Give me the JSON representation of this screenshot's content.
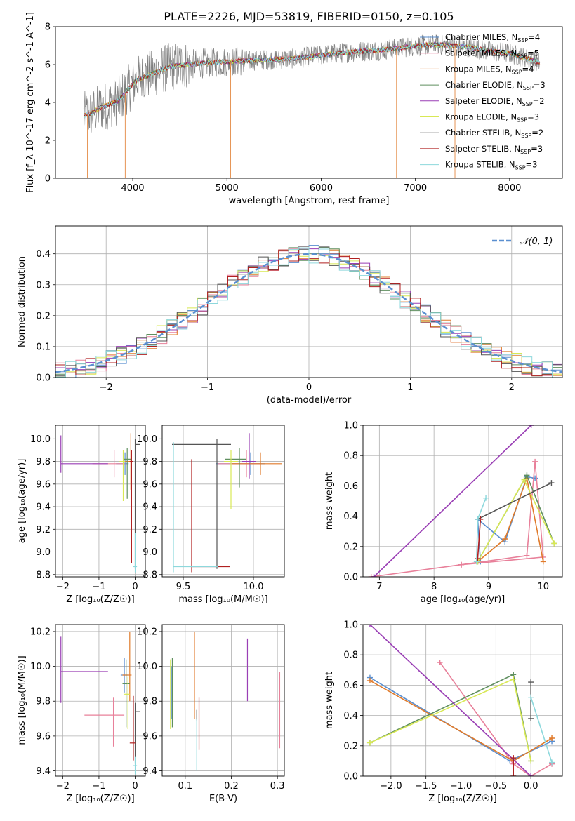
{
  "figure": {
    "title": "PLATE=2226, MJD=53819, FIBERID=0150, z=0.105"
  },
  "colors": {
    "Chabrier MILES": "#5a8fd0",
    "Salpeter MILES": "#e8809a",
    "Kroupa MILES": "#e07a2a",
    "Chabrier ELODIE": "#5f8f5f",
    "Salpeter ELODIE": "#9a3fb5",
    "Kroupa ELODIE": "#d8e855",
    "Chabrier STELIB": "#555555",
    "Salpeter STELIB": "#b02020",
    "Kroupa STELIB": "#8dd8dc",
    "data": "#808080",
    "gauss": "#5a8fd0"
  },
  "chart_data": [
    {
      "id": "spectrum",
      "type": "line",
      "title": "PLATE=2226, MJD=53819, FIBERID=0150, z=0.105",
      "xlabel": "wavelength [Angstrom, rest frame]",
      "ylabel": "Flux [f_λ 10^-17 erg cm^-2 s^-1 A^-1]",
      "xlim": [
        3180,
        8560
      ],
      "ylim": [
        0,
        8
      ],
      "xticks": [
        "4000",
        "5000",
        "6000",
        "7000",
        "8000"
      ],
      "yticks": [
        "0",
        "2",
        "4",
        "6",
        "8"
      ],
      "legend_position": "right",
      "legend": [
        {
          "key": "Chabrier MILES",
          "label": "Chabrier MILES, N",
          "sub": "SSP",
          "tail": "=4"
        },
        {
          "key": "Salpeter MILES",
          "label": "Salpeter MILES, N",
          "sub": "SSP",
          "tail": "=5"
        },
        {
          "key": "Kroupa MILES",
          "label": "Kroupa MILES, N",
          "sub": "SSP",
          "tail": "=4"
        },
        {
          "key": "Chabrier ELODIE",
          "label": "Chabrier ELODIE, N",
          "sub": "SSP",
          "tail": "=3"
        },
        {
          "key": "Salpeter ELODIE",
          "label": "Salpeter ELODIE, N",
          "sub": "SSP",
          "tail": "=2"
        },
        {
          "key": "Kroupa ELODIE",
          "label": "Kroupa ELODIE, N",
          "sub": "SSP",
          "tail": "=3"
        },
        {
          "key": "Chabrier STELIB",
          "label": "Chabrier STELIB, N",
          "sub": "SSP",
          "tail": "=2"
        },
        {
          "key": "Salpeter STELIB",
          "label": "Salpeter STELIB, N",
          "sub": "SSP",
          "tail": "=3"
        },
        {
          "key": "Kroupa STELIB",
          "label": "Kroupa STELIB, N",
          "sub": "SSP",
          "tail": "=3"
        }
      ],
      "continuum": {
        "x": [
          3480,
          3550,
          3650,
          3750,
          3850,
          3950,
          4050,
          4200,
          4400,
          4600,
          4800,
          5000,
          5200,
          5400,
          5600,
          5800,
          6000,
          6200,
          6400,
          6600,
          6800,
          7000,
          7200,
          7400,
          7600,
          7800,
          8000,
          8200,
          8320
        ],
        "y": [
          3.3,
          3.4,
          3.7,
          3.9,
          4.1,
          4.7,
          5.2,
          5.5,
          5.9,
          6.0,
          6.1,
          6.15,
          6.2,
          6.25,
          6.3,
          6.35,
          6.5,
          6.6,
          6.7,
          6.75,
          6.85,
          7.0,
          7.05,
          7.0,
          6.9,
          6.7,
          6.6,
          6.3,
          6.1
        ]
      },
      "sharp_drops": [
        {
          "x": 3520,
          "y": 0
        },
        {
          "x": 3920,
          "y": 0
        },
        {
          "x": 5040,
          "y": 0
        },
        {
          "x": 6800,
          "y": 0
        },
        {
          "x": 7420,
          "y": 0
        }
      ]
    },
    {
      "id": "residuals",
      "type": "histogram",
      "xlabel": "(data-model)/error",
      "ylabel": "Normed distribution",
      "xlim": [
        -2.5,
        2.5
      ],
      "ylim": [
        0,
        0.49
      ],
      "xticks": [
        "−2",
        "−1",
        "0",
        "1",
        "2"
      ],
      "yticks": [
        "0.0",
        "0.1",
        "0.2",
        "0.3",
        "0.4"
      ],
      "legend_position": "top-right",
      "legend_label": "𝒩(0, 1)",
      "bin_width": 0.1,
      "gaussian": {
        "mu": 0,
        "sigma": 1
      }
    },
    {
      "id": "age_vs_Z",
      "type": "errorbar",
      "xlabel": "Z [log₁₀(Z/Z☉)]",
      "ylabel": "age  [log₁₀(age/yr)]",
      "xlim": [
        -2.2,
        0.28
      ],
      "ylim": [
        8.78,
        10.12
      ],
      "xticks": [
        "−2",
        "−1",
        "0"
      ],
      "yticks": [
        "8.8",
        "9.0",
        "9.2",
        "9.4",
        "9.6",
        "9.8",
        "10.0"
      ],
      "points": [
        {
          "key": "Chabrier MILES",
          "x": -0.28,
          "y": 9.78,
          "xerr": [
            0.25,
            0.1
          ],
          "yerr": [
            0.1,
            0.1
          ]
        },
        {
          "key": "Salpeter MILES",
          "x": -0.58,
          "y": 9.78,
          "xerr": [
            0.6,
            0.3
          ],
          "yerr": [
            0.12,
            0.12
          ]
        },
        {
          "key": "Kroupa MILES",
          "x": -0.12,
          "y": 9.8,
          "xerr": [
            0.2,
            0.05
          ],
          "yerr": [
            0.25,
            0.25
          ]
        },
        {
          "key": "Chabrier ELODIE",
          "x": -0.22,
          "y": 9.82,
          "xerr": [
            0.1,
            0.1
          ],
          "yerr": [
            0.35,
            0.1
          ]
        },
        {
          "key": "Salpeter ELODIE",
          "x": -2.05,
          "y": 9.78,
          "xerr": [
            0.0,
            1.3
          ],
          "yerr": [
            0.08,
            0.25
          ]
        },
        {
          "key": "Kroupa ELODIE",
          "x": -0.33,
          "y": 9.8,
          "xerr": [
            0.1,
            0.05
          ],
          "yerr": [
            0.35,
            0.1
          ]
        },
        {
          "key": "Chabrier STELIB",
          "x": 0.0,
          "y": 9.95,
          "xerr": [
            0.0,
            0.13
          ],
          "yerr": [
            1.1,
            0.05
          ]
        },
        {
          "key": "Salpeter STELIB",
          "x": -0.1,
          "y": 9.8,
          "xerr": [
            0.05,
            0.05
          ],
          "yerr": [
            0.9,
            0.1
          ]
        },
        {
          "key": "Kroupa STELIB",
          "x": 0.0,
          "y": 8.87,
          "xerr": [
            0.05,
            0.05
          ],
          "yerr": [
            0.05,
            0.3
          ]
        }
      ]
    },
    {
      "id": "age_vs_mass",
      "type": "errorbar",
      "xlabel": "mass [log₁₀(M/M☉)]",
      "xlim": [
        9.35,
        10.22
      ],
      "ylim": [
        8.78,
        10.12
      ],
      "xticks": [
        "9.5",
        "10.0"
      ],
      "yticks": [
        "8.8",
        "9.0",
        "9.2",
        "9.4",
        "9.6",
        "9.8",
        "10.0"
      ],
      "points": [
        {
          "key": "Chabrier MILES",
          "x": 9.98,
          "y": 9.78,
          "xerr": [
            0.25,
            0.1
          ],
          "yerr": [
            0.1,
            0.1
          ]
        },
        {
          "key": "Salpeter MILES",
          "x": 9.95,
          "y": 9.78,
          "xerr": [
            0.2,
            0.1
          ],
          "yerr": [
            0.12,
            0.12
          ]
        },
        {
          "key": "Kroupa MILES",
          "x": 10.05,
          "y": 9.78,
          "xerr": [
            0.2,
            0.15
          ],
          "yerr": [
            0.1,
            0.1
          ]
        },
        {
          "key": "Chabrier ELODIE",
          "x": 9.9,
          "y": 9.82,
          "xerr": [
            0.1,
            0.05
          ],
          "yerr": [
            0.25,
            0.1
          ]
        },
        {
          "key": "Salpeter ELODIE",
          "x": 9.97,
          "y": 9.8,
          "xerr": [
            0.05,
            0.05
          ],
          "yerr": [
            0.15,
            0.25
          ]
        },
        {
          "key": "Kroupa ELODIE",
          "x": 9.84,
          "y": 9.8,
          "xerr": [
            0.05,
            0.05
          ],
          "yerr": [
            0.42,
            0.1
          ]
        },
        {
          "key": "Chabrier STELIB",
          "x": 9.74,
          "y": 9.95,
          "xerr": [
            0.32,
            0.1
          ],
          "yerr": [
            1.1,
            0.05
          ]
        },
        {
          "key": "Salpeter STELIB",
          "x": 9.56,
          "y": 8.87,
          "xerr": [
            0.0,
            0.27
          ],
          "yerr": [
            0.05,
            0.95
          ]
        },
        {
          "key": "Kroupa STELIB",
          "x": 9.43,
          "y": 8.87,
          "xerr": [
            0.0,
            0.32
          ],
          "yerr": [
            0.05,
            1.1
          ]
        }
      ]
    },
    {
      "id": "weight_vs_age",
      "type": "line",
      "xlabel": "age  [log₁₀(age/yr)]",
      "ylabel": "mass weight",
      "xlim": [
        6.7,
        10.35
      ],
      "ylim": [
        0,
        1.0
      ],
      "xticks": [
        "7",
        "8",
        "9",
        "10"
      ],
      "yticks": [
        "0.0",
        "0.2",
        "0.4",
        "0.6",
        "0.8",
        "1.0"
      ],
      "series": [
        {
          "key": "Chabrier MILES",
          "x": [
            8.85,
            8.8,
            9.3,
            9.7,
            9.85
          ],
          "y": [
            0.1,
            0.38,
            0.23,
            0.66,
            0.65
          ]
        },
        {
          "key": "Salpeter MILES",
          "x": [
            6.85,
            8.5,
            9.7,
            9.85,
            10.0,
            8.5
          ],
          "y": [
            0.0,
            0.08,
            0.14,
            0.76,
            0.13,
            0.08
          ]
        },
        {
          "key": "Kroupa MILES",
          "x": [
            8.8,
            9.3,
            9.7,
            10.0
          ],
          "y": [
            0.1,
            0.25,
            0.65,
            0.1
          ]
        },
        {
          "key": "Chabrier ELODIE",
          "x": [
            8.8,
            9.7,
            10.2
          ],
          "y": [
            0.1,
            0.67,
            0.22
          ]
        },
        {
          "key": "Salpeter ELODIE",
          "x": [
            6.9,
            9.78
          ],
          "y": [
            0.0,
            1.0
          ]
        },
        {
          "key": "Kroupa ELODIE",
          "x": [
            8.8,
            9.65,
            10.2
          ],
          "y": [
            0.1,
            0.64,
            0.22
          ]
        },
        {
          "key": "Chabrier STELIB",
          "x": [
            8.8,
            10.15
          ],
          "y": [
            0.38,
            0.62
          ]
        },
        {
          "key": "Salpeter STELIB",
          "x": [
            8.8,
            8.85
          ],
          "y": [
            0.12,
            0.38
          ]
        },
        {
          "key": "Kroupa STELIB",
          "x": [
            8.78,
            8.8,
            8.95
          ],
          "y": [
            0.1,
            0.38,
            0.52
          ]
        }
      ]
    },
    {
      "id": "mass_vs_Z",
      "type": "errorbar",
      "xlabel": "Z [log₁₀(Z/Z☉)]",
      "ylabel": "mass [log₁₀(M/M☉)]",
      "xlim": [
        -2.2,
        0.28
      ],
      "ylim": [
        9.37,
        10.24
      ],
      "xticks": [
        "−2",
        "−1",
        "0"
      ],
      "yticks": [
        "9.4",
        "9.6",
        "9.8",
        "10.0",
        "10.2"
      ],
      "points": [
        {
          "key": "Chabrier MILES",
          "x": -0.3,
          "y": 9.95,
          "xerr": [
            0.1,
            0.1
          ],
          "yerr": [
            0.1,
            0.1
          ]
        },
        {
          "key": "Salpeter MILES",
          "x": -0.6,
          "y": 9.72,
          "xerr": [
            0.8,
            0.3
          ],
          "yerr": [
            0.18,
            0.1
          ]
        },
        {
          "key": "Kroupa MILES",
          "x": -0.15,
          "y": 9.95,
          "xerr": [
            0.2,
            0.05
          ],
          "yerr": [
            0.15,
            0.25
          ]
        },
        {
          "key": "Chabrier ELODIE",
          "x": -0.25,
          "y": 9.9,
          "xerr": [
            0.1,
            0.1
          ],
          "yerr": [
            0.25,
            0.14
          ]
        },
        {
          "key": "Salpeter ELODIE",
          "x": -2.05,
          "y": 9.97,
          "xerr": [
            0.0,
            1.3
          ],
          "yerr": [
            0.18,
            0.2
          ]
        },
        {
          "key": "Kroupa ELODIE",
          "x": -0.2,
          "y": 9.84,
          "xerr": [
            0.1,
            0.05
          ],
          "yerr": [
            0.2,
            0.1
          ]
        },
        {
          "key": "Chabrier STELIB",
          "x": 0.0,
          "y": 9.74,
          "xerr": [
            0.0,
            0.13
          ],
          "yerr": [
            0.3,
            0.05
          ]
        },
        {
          "key": "Salpeter STELIB",
          "x": -0.05,
          "y": 9.56,
          "xerr": [
            0.1,
            0.05
          ],
          "yerr": [
            0.1,
            0.27
          ]
        },
        {
          "key": "Kroupa STELIB",
          "x": 0.0,
          "y": 9.43,
          "xerr": [
            0.05,
            0.05
          ],
          "yerr": [
            0.05,
            0.05
          ]
        }
      ]
    },
    {
      "id": "mass_vs_EBV",
      "type": "errorbar",
      "xlabel": "E(B-V)",
      "xlim": [
        0.05,
        0.315
      ],
      "ylim": [
        9.37,
        10.24
      ],
      "xticks": [
        "0.1",
        "0.2",
        "0.3"
      ],
      "yticks": [
        "9.4",
        "9.6",
        "9.8",
        "10.0",
        "10.2"
      ],
      "points": [
        {
          "key": "Chabrier MILES",
          "x": 0.07,
          "y": 9.85,
          "xerr": [
            0,
            0
          ],
          "yerr": [
            0.15,
            0.15
          ]
        },
        {
          "key": "Salpeter MILES",
          "x": 0.305,
          "y": 9.75,
          "xerr": [
            0,
            0
          ],
          "yerr": [
            0.22,
            0.22
          ]
        },
        {
          "key": "Kroupa MILES",
          "x": 0.12,
          "y": 9.95,
          "xerr": [
            0,
            0
          ],
          "yerr": [
            0.25,
            0.25
          ]
        },
        {
          "key": "Chabrier ELODIE",
          "x": 0.072,
          "y": 9.85,
          "xerr": [
            0,
            0
          ],
          "yerr": [
            0.2,
            0.2
          ]
        },
        {
          "key": "Salpeter ELODIE",
          "x": 0.235,
          "y": 9.98,
          "xerr": [
            0,
            0
          ],
          "yerr": [
            0.18,
            0.18
          ]
        },
        {
          "key": "Kroupa ELODIE",
          "x": 0.068,
          "y": 9.84,
          "xerr": [
            0,
            0
          ],
          "yerr": [
            0.2,
            0.2
          ]
        },
        {
          "key": "Chabrier STELIB",
          "x": 0.125,
          "y": 9.72,
          "xerr": [
            0,
            0
          ],
          "yerr": [
            0.03,
            0.03
          ]
        },
        {
          "key": "Salpeter STELIB",
          "x": 0.13,
          "y": 9.67,
          "xerr": [
            0,
            0
          ],
          "yerr": [
            0.15,
            0.15
          ]
        },
        {
          "key": "Kroupa STELIB",
          "x": 0.125,
          "y": 9.55,
          "xerr": [
            0,
            0
          ],
          "yerr": [
            0.15,
            0.15
          ]
        }
      ]
    },
    {
      "id": "weight_vs_Z",
      "type": "line",
      "xlabel": "Z [log₁₀(Z/Z☉)]",
      "ylabel": "mass weight",
      "xlim": [
        -2.4,
        0.45
      ],
      "ylim": [
        0,
        1.0
      ],
      "xticks": [
        "−2.0",
        "−1.5",
        "−1.0",
        "−0.5",
        "0.0"
      ],
      "yticks": [
        "0.0",
        "0.2",
        "0.4",
        "0.6",
        "0.8",
        "1.0"
      ],
      "series": [
        {
          "key": "Chabrier MILES",
          "x": [
            -2.3,
            -0.3,
            0.3
          ],
          "y": [
            0.65,
            0.1,
            0.23
          ]
        },
        {
          "key": "Salpeter MILES",
          "x": [
            -1.3,
            -0.25,
            0.0,
            0.3
          ],
          "y": [
            0.75,
            0.08,
            0.0,
            0.08
          ]
        },
        {
          "key": "Kroupa MILES",
          "x": [
            -2.3,
            -0.25,
            0.3
          ],
          "y": [
            0.63,
            0.1,
            0.25
          ]
        },
        {
          "key": "Chabrier ELODIE",
          "x": [
            -2.3,
            -0.25,
            0.0
          ],
          "y": [
            0.22,
            0.67,
            0.1
          ]
        },
        {
          "key": "Salpeter ELODIE",
          "x": [
            -2.3,
            0.0
          ],
          "y": [
            1.0,
            0.0
          ]
        },
        {
          "key": "Kroupa ELODIE",
          "x": [
            -2.3,
            -0.25,
            0.0
          ],
          "y": [
            0.22,
            0.64,
            0.1
          ]
        },
        {
          "key": "Chabrier STELIB",
          "x": [
            0.0,
            0.0
          ],
          "y": [
            0.38,
            0.62
          ]
        },
        {
          "key": "Salpeter STELIB",
          "x": [
            -0.25,
            -0.25
          ],
          "y": [
            0.0,
            0.12
          ]
        },
        {
          "key": "Kroupa STELIB",
          "x": [
            0.0,
            0.3
          ],
          "y": [
            0.52,
            0.09
          ]
        }
      ]
    }
  ]
}
